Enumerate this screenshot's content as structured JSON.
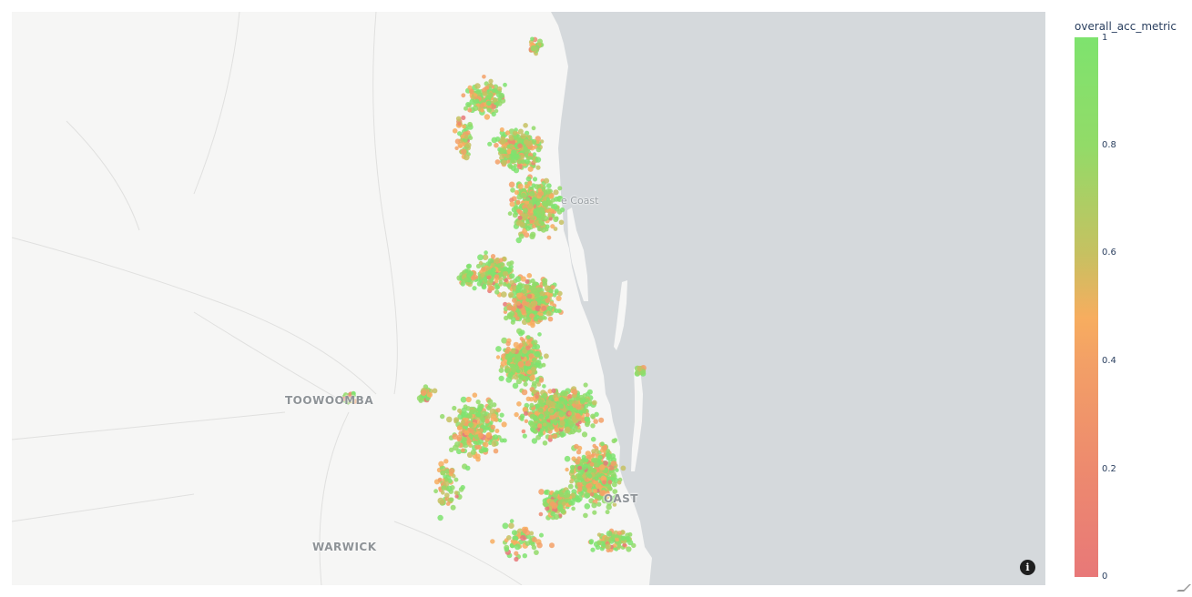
{
  "map": {
    "place_labels": [
      {
        "id": "sunshine-coast",
        "text": "e Coast"
      },
      {
        "id": "toowoomba",
        "text": "TOOWOOMBA"
      },
      {
        "id": "gold-coast",
        "text": "OAST"
      },
      {
        "id": "warwick",
        "text": "WARWICK"
      }
    ],
    "colors": {
      "land": "#f6f6f5",
      "water": "#d5d9dc",
      "high_value": "#7ee36e",
      "low_value": "#e87878"
    },
    "icons": {
      "info": "info-icon",
      "resize": "resize-handle-icon"
    }
  },
  "info_button": {
    "label": "i"
  },
  "colorbar": {
    "title": "overall_acc_metric",
    "range": [
      0,
      1
    ],
    "ticks": [
      "1",
      "0.8",
      "0.6",
      "0.4",
      "0.2",
      "0"
    ],
    "colorscale": [
      "#e87878",
      "#ed8a6e",
      "#f3a066",
      "#f7ad5f",
      "#c6c161",
      "#92db68",
      "#7ee36e"
    ]
  }
}
